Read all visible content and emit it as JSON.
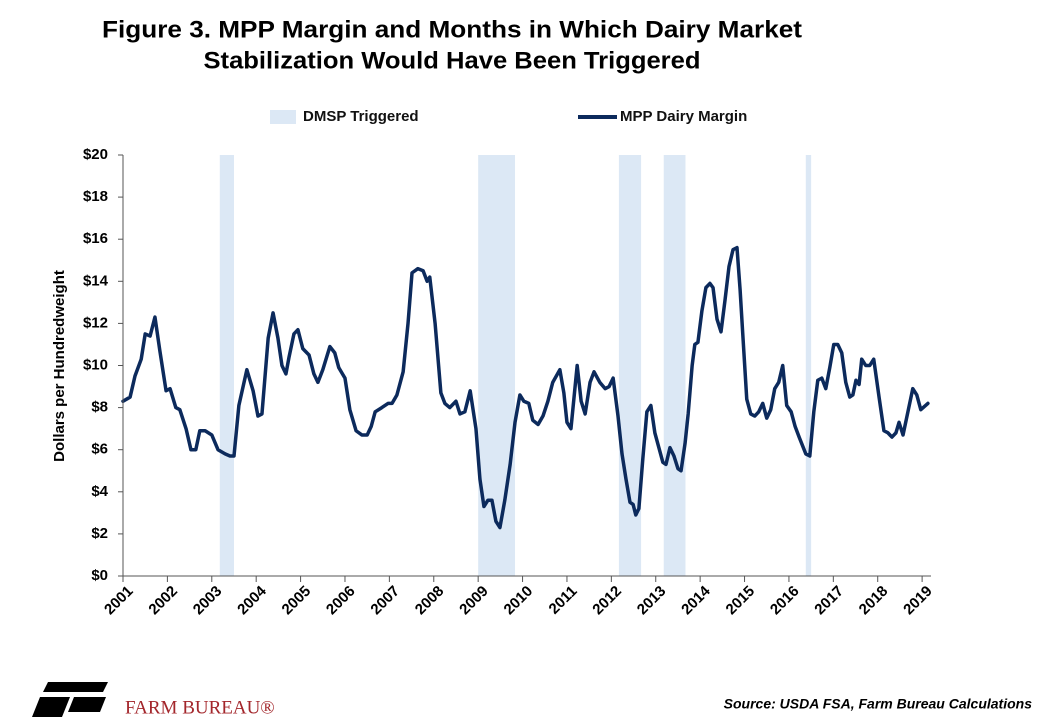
{
  "chart_data": {
    "type": "line",
    "title": [
      "Figure 3. MPP Margin and Months in Which Dairy Market",
      "Stabilization Would Have Been Triggered"
    ],
    "y_label": "Dollars per Hundredweight",
    "source": "Source: USDA FSA, Farm Bureau Calculations",
    "logo_text": "FARM BUREAU®",
    "xlim": [
      2001,
      2019.2
    ],
    "xticks": [
      2001,
      2002,
      2003,
      2004,
      2005,
      2006,
      2007,
      2008,
      2009,
      2010,
      2011,
      2012,
      2013,
      2014,
      2015,
      2016,
      2017,
      2018,
      2019
    ],
    "ylim": [
      0,
      20
    ],
    "yticks": [
      {
        "value": 0,
        "label": "$0"
      },
      {
        "value": 2,
        "label": "$2"
      },
      {
        "value": 4,
        "label": "$4"
      },
      {
        "value": 6,
        "label": "$6"
      },
      {
        "value": 8,
        "label": "$8"
      },
      {
        "value": 10,
        "label": "$10"
      },
      {
        "value": 12,
        "label": "$12"
      },
      {
        "value": 14,
        "label": "$14"
      },
      {
        "value": 16,
        "label": "$16"
      },
      {
        "value": 18,
        "label": "$18"
      },
      {
        "value": 20,
        "label": "$20"
      }
    ],
    "grid": false,
    "legend": "top",
    "series": [
      {
        "name": "DMSP Triggered",
        "color": "#dce8f5",
        "regions": [
          [
            2003.18,
            2003.5
          ],
          [
            2009.0,
            2009.83
          ],
          [
            2012.17,
            2012.67
          ],
          [
            2013.18,
            2013.67
          ],
          [
            2016.38,
            2016.5
          ]
        ]
      },
      {
        "name": "MPP Dairy Margin",
        "color": "#0c2a5c",
        "x": [
          2001.0,
          2001.16,
          2001.27,
          2001.41,
          2001.5,
          2001.61,
          2001.72,
          2001.83,
          2001.97,
          2002.06,
          2002.19,
          2002.28,
          2002.42,
          2002.53,
          2002.64,
          2002.73,
          2002.85,
          2003.0,
          2003.14,
          2003.3,
          2003.41,
          2003.5,
          2003.61,
          2003.79,
          2003.93,
          2004.04,
          2004.13,
          2004.27,
          2004.38,
          2004.49,
          2004.58,
          2004.67,
          2004.74,
          2004.85,
          2004.94,
          2005.05,
          2005.19,
          2005.3,
          2005.39,
          2005.5,
          2005.66,
          2005.77,
          2005.86,
          2006.0,
          2006.11,
          2006.25,
          2006.38,
          2006.5,
          2006.59,
          2006.68,
          2006.83,
          2006.97,
          2007.06,
          2007.17,
          2007.31,
          2007.42,
          2007.51,
          2007.64,
          2007.76,
          2007.85,
          2007.91,
          2008.03,
          2008.16,
          2008.25,
          2008.36,
          2008.5,
          2008.59,
          2008.7,
          2008.82,
          2008.95,
          2009.04,
          2009.13,
          2009.22,
          2009.31,
          2009.4,
          2009.49,
          2009.6,
          2009.72,
          2009.83,
          2009.94,
          2010.03,
          2010.14,
          2010.23,
          2010.35,
          2010.46,
          2010.57,
          2010.68,
          2010.84,
          2010.93,
          2011.0,
          2011.09,
          2011.23,
          2011.32,
          2011.41,
          2011.52,
          2011.61,
          2011.74,
          2011.86,
          2011.95,
          2012.04,
          2012.15,
          2012.24,
          2012.33,
          2012.42,
          2012.49,
          2012.55,
          2012.62,
          2012.71,
          2012.8,
          2012.89,
          2012.98,
          2013.07,
          2013.16,
          2013.23,
          2013.32,
          2013.41,
          2013.5,
          2013.57,
          2013.66,
          2013.73,
          2013.82,
          2013.88,
          2013.95,
          2014.04,
          2014.13,
          2014.22,
          2014.29,
          2014.38,
          2014.47,
          2014.56,
          2014.65,
          2014.74,
          2014.83,
          2014.9,
          2014.96,
          2015.05,
          2015.14,
          2015.23,
          2015.32,
          2015.41,
          2015.5,
          2015.59,
          2015.68,
          2015.77,
          2015.86,
          2015.95,
          2016.05,
          2016.14,
          2016.23,
          2016.38,
          2016.47,
          2016.56,
          2016.65,
          2016.74,
          2016.83,
          2016.92,
          2017.01,
          2017.1,
          2017.19,
          2017.28,
          2017.37,
          2017.44,
          2017.51,
          2017.58,
          2017.64,
          2017.73,
          2017.82,
          2017.91,
          2018.03,
          2018.14,
          2018.23,
          2018.32,
          2018.41,
          2018.48,
          2018.57,
          2018.68,
          2018.79,
          2018.88,
          2018.97,
          2019.13
        ],
        "values": [
          8.3,
          8.5,
          9.5,
          10.3,
          11.5,
          11.4,
          12.3,
          10.7,
          8.8,
          8.9,
          8.0,
          7.9,
          7.0,
          6.0,
          6.0,
          6.9,
          6.9,
          6.7,
          6.0,
          5.8,
          5.7,
          5.7,
          8.1,
          9.8,
          8.8,
          7.6,
          7.7,
          11.3,
          12.5,
          11.3,
          10.0,
          9.6,
          10.4,
          11.5,
          11.7,
          10.8,
          10.5,
          9.6,
          9.2,
          9.8,
          10.9,
          10.6,
          9.9,
          9.4,
          7.9,
          6.9,
          6.7,
          6.7,
          7.1,
          7.8,
          8.0,
          8.2,
          8.2,
          8.6,
          9.7,
          12.0,
          14.4,
          14.6,
          14.5,
          14.0,
          14.2,
          12.0,
          8.7,
          8.2,
          8.0,
          8.3,
          7.7,
          7.8,
          8.8,
          7.0,
          4.6,
          3.3,
          3.6,
          3.6,
          2.6,
          2.3,
          3.6,
          5.3,
          7.3,
          8.6,
          8.3,
          8.2,
          7.4,
          7.2,
          7.6,
          8.3,
          9.2,
          9.8,
          8.7,
          7.3,
          7.0,
          10.0,
          8.3,
          7.7,
          9.2,
          9.7,
          9.2,
          8.9,
          9.0,
          9.4,
          7.6,
          5.8,
          4.6,
          3.5,
          3.4,
          2.9,
          3.2,
          5.6,
          7.8,
          8.1,
          6.8,
          6.1,
          5.4,
          5.3,
          6.1,
          5.7,
          5.1,
          5.0,
          6.3,
          7.7,
          10.0,
          11.0,
          11.1,
          12.6,
          13.7,
          13.9,
          13.7,
          12.2,
          11.6,
          13.1,
          14.7,
          15.5,
          15.6,
          13.6,
          11.5,
          8.4,
          7.7,
          7.6,
          7.8,
          8.2,
          7.5,
          7.9,
          8.9,
          9.2,
          10.0,
          8.1,
          7.8,
          7.1,
          6.6,
          5.8,
          5.7,
          7.8,
          9.3,
          9.4,
          8.9,
          9.9,
          11.0,
          11.0,
          10.6,
          9.2,
          8.5,
          8.6,
          9.3,
          9.1,
          10.3,
          10.0,
          10.0,
          10.3,
          8.5,
          6.9,
          6.8,
          6.6,
          6.8,
          7.3,
          6.7,
          7.8,
          8.9,
          8.6,
          7.9,
          8.2
        ]
      }
    ]
  }
}
